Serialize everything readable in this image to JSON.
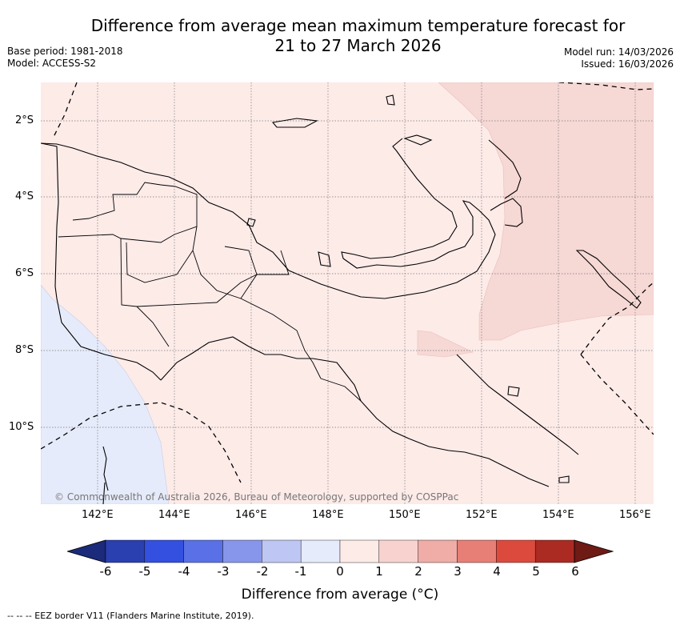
{
  "title_line1": "Difference from average mean maximum temperature forecast for",
  "title_line2": "21 to 27 March 2026",
  "base_period": "Base period: 1981-2018",
  "model": "Model: ACCESS-S2",
  "model_run": "Model run: 14/03/2026",
  "issued": "Issued: 16/03/2026",
  "copyright": "© Commonwealth of Australia 2026, Bureau of Meteorology, supported by COSPPac",
  "lat_labels": [
    "2°S",
    "4°S",
    "6°S",
    "8°S",
    "10°S"
  ],
  "lon_labels": [
    "142°E",
    "144°E",
    "146°E",
    "148°E",
    "150°E",
    "152°E",
    "154°E",
    "156°E"
  ],
  "colorbar": {
    "title": "Difference from average (°C)",
    "tick_labels": [
      "-6",
      "-5",
      "-4",
      "-3",
      "-2",
      "-1",
      "0",
      "1",
      "2",
      "3",
      "4",
      "5",
      "6"
    ],
    "colors": [
      "#2a3fb0",
      "#3350e0",
      "#5a70e6",
      "#8796ea",
      "#bec6f3",
      "#e6ebfb",
      "#fdebe8",
      "#f8d2cf",
      "#f0aca6",
      "#e77f76",
      "#dc4a3e",
      "#ab2a22"
    ],
    "low_extend_color": "#1b2a7a",
    "high_extend_color": "#6e1a15"
  },
  "map_colors": {
    "warm_minus1_to_0": "#fdebe8",
    "warm_0_to_1": "#f6d8d5",
    "cool_minus1_to_0": "#e6ebfb"
  },
  "footer": "--  --  -- EEZ border V11 (Flanders Marine Institute, 2019)."
}
